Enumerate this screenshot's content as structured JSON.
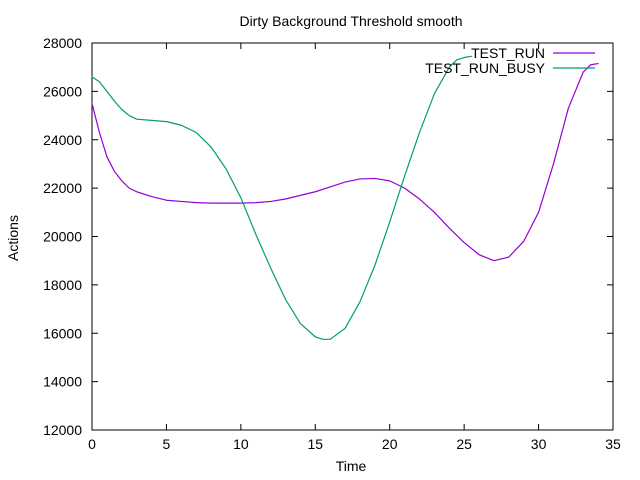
{
  "chart_data": {
    "type": "line",
    "title": "Dirty Background Threshold smooth",
    "xlabel": "Time",
    "ylabel": "Actions",
    "xlim": [
      0,
      35
    ],
    "ylim": [
      12000,
      28000
    ],
    "xticks": [
      0,
      5,
      10,
      15,
      20,
      25,
      30,
      35
    ],
    "yticks": [
      12000,
      14000,
      16000,
      18000,
      20000,
      22000,
      24000,
      26000,
      28000
    ],
    "grid": false,
    "legend_position": "top-right",
    "series": [
      {
        "name": "TEST_RUN",
        "color": "#9400d3",
        "points": [
          [
            0,
            25500
          ],
          [
            0.5,
            24300
          ],
          [
            1,
            23300
          ],
          [
            1.5,
            22700
          ],
          [
            2,
            22300
          ],
          [
            2.5,
            22000
          ],
          [
            3,
            21850
          ],
          [
            4,
            21650
          ],
          [
            5,
            21500
          ],
          [
            6,
            21450
          ],
          [
            7,
            21400
          ],
          [
            8,
            21380
          ],
          [
            9,
            21380
          ],
          [
            10,
            21380
          ],
          [
            11,
            21400
          ],
          [
            12,
            21450
          ],
          [
            13,
            21550
          ],
          [
            14,
            21700
          ],
          [
            15,
            21850
          ],
          [
            16,
            22050
          ],
          [
            17,
            22250
          ],
          [
            18,
            22380
          ],
          [
            19,
            22400
          ],
          [
            20,
            22300
          ],
          [
            21,
            22000
          ],
          [
            22,
            21550
          ],
          [
            23,
            21000
          ],
          [
            24,
            20350
          ],
          [
            25,
            19750
          ],
          [
            26,
            19250
          ],
          [
            27,
            19000
          ],
          [
            28,
            19150
          ],
          [
            29,
            19800
          ],
          [
            30,
            21000
          ],
          [
            31,
            23000
          ],
          [
            32,
            25300
          ],
          [
            33,
            26800
          ],
          [
            33.5,
            27100
          ],
          [
            34,
            27150
          ]
        ]
      },
      {
        "name": "TEST_RUN_BUSY",
        "color": "#009e73",
        "points": [
          [
            0,
            26600
          ],
          [
            0.5,
            26400
          ],
          [
            1,
            26000
          ],
          [
            1.5,
            25600
          ],
          [
            2,
            25250
          ],
          [
            2.5,
            25000
          ],
          [
            3,
            24850
          ],
          [
            4,
            24800
          ],
          [
            5,
            24750
          ],
          [
            6,
            24600
          ],
          [
            7,
            24300
          ],
          [
            8,
            23700
          ],
          [
            9,
            22800
          ],
          [
            10,
            21600
          ],
          [
            11,
            20100
          ],
          [
            12,
            18700
          ],
          [
            13,
            17400
          ],
          [
            14,
            16400
          ],
          [
            15,
            15850
          ],
          [
            15.5,
            15750
          ],
          [
            16,
            15750
          ],
          [
            17,
            16200
          ],
          [
            18,
            17300
          ],
          [
            19,
            18800
          ],
          [
            20,
            20600
          ],
          [
            21,
            22500
          ],
          [
            22,
            24300
          ],
          [
            23,
            25900
          ],
          [
            24,
            27000
          ],
          [
            24.5,
            27300
          ],
          [
            25,
            27400
          ],
          [
            25.5,
            27450
          ]
        ]
      }
    ]
  }
}
